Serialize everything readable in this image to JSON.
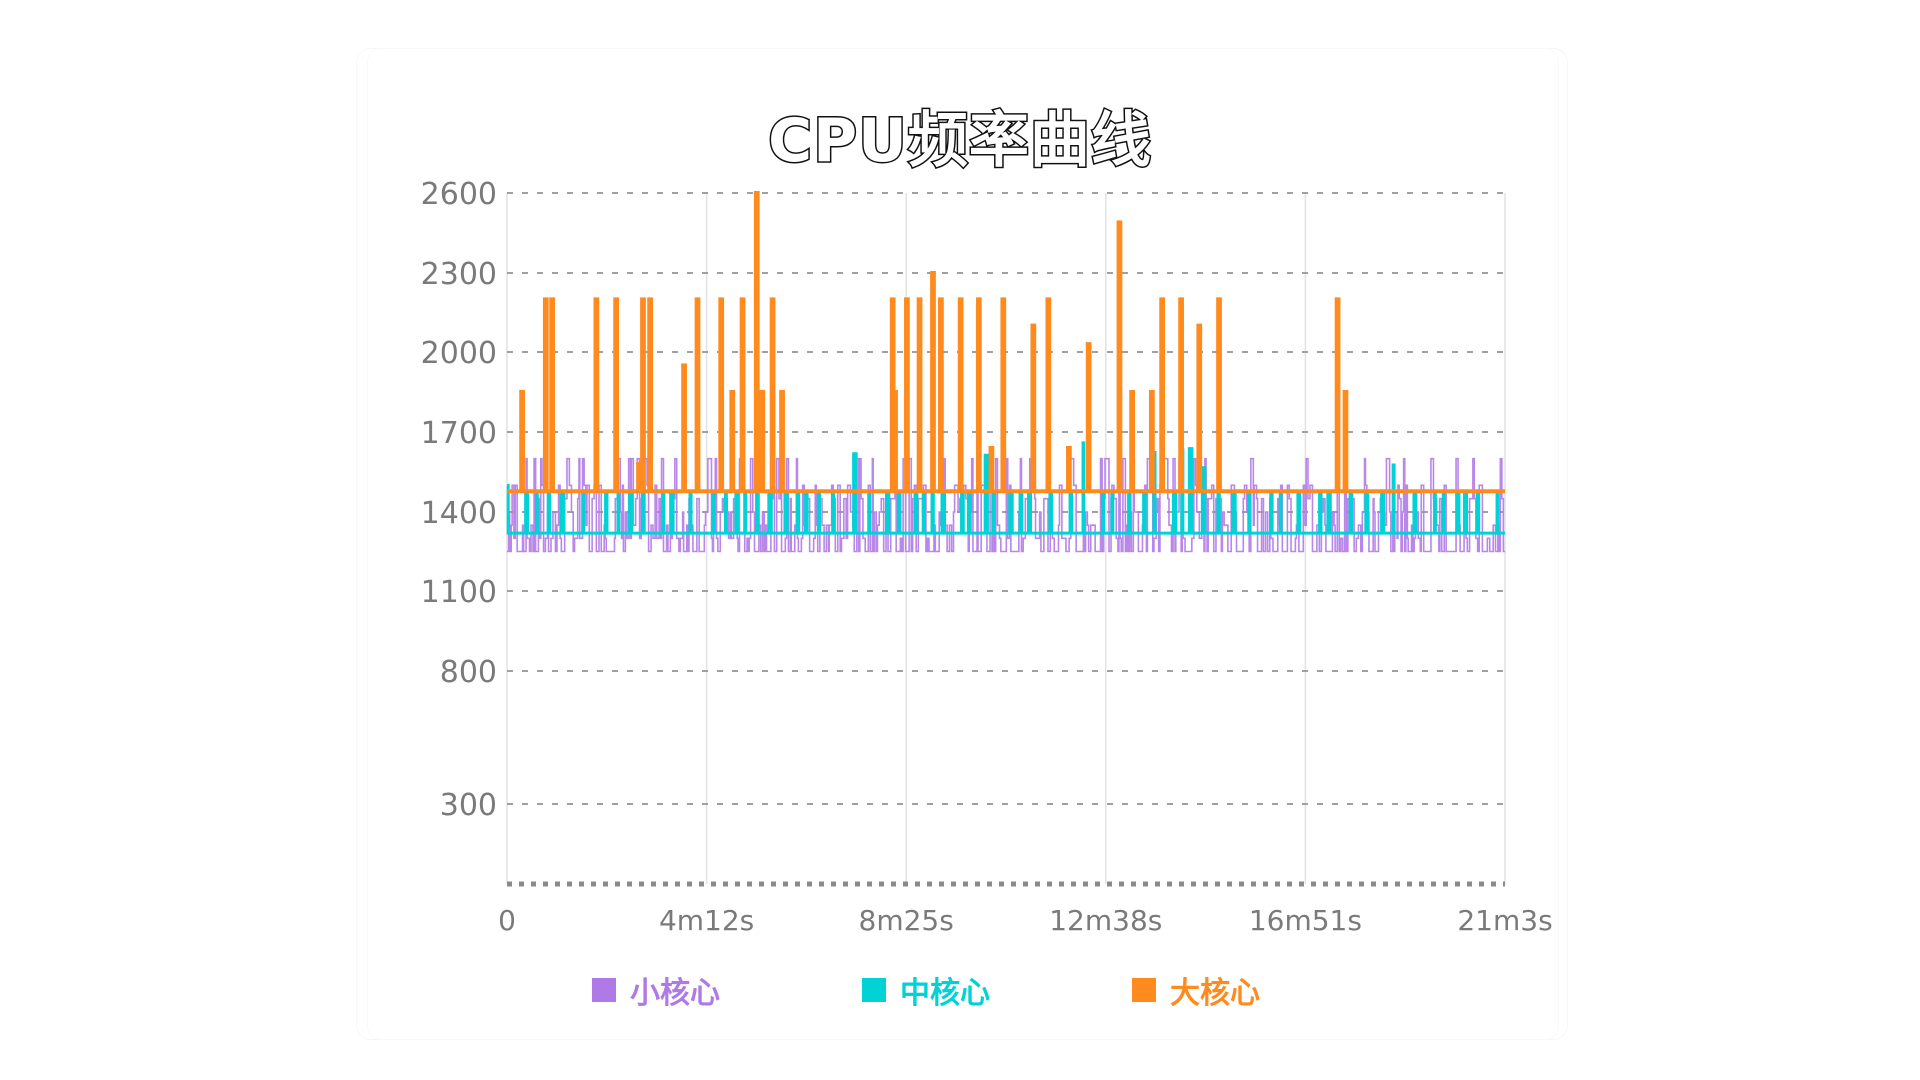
{
  "title": "CPU频率曲线",
  "colors": {
    "little": "#b07ae6",
    "mid": "#00d2d6",
    "big": "#ff8a1e",
    "grid": "#9a9a9a",
    "axis_text": "#7a7a7a"
  },
  "legend": [
    {
      "label": "小核心",
      "color": "#b07ae6"
    },
    {
      "label": "中核心",
      "color": "#00d2d6"
    },
    {
      "label": "大核心",
      "color": "#ff8a1e"
    }
  ],
  "chart_data": {
    "type": "line",
    "title": "CPU频率曲线",
    "xlabel": "",
    "ylabel": "",
    "y_ticks": [
      2600,
      2300,
      2000,
      1700,
      1400,
      1100,
      800,
      300
    ],
    "x_ticks": [
      "0",
      "4m12s",
      "8m25s",
      "12m38s",
      "16m51s",
      "21m3s"
    ],
    "xlim_seconds": [
      0,
      1263
    ],
    "ylim": [
      0,
      2600
    ],
    "grid": {
      "horizontal": "dashed",
      "vertical": "solid-light"
    },
    "legend_position": "bottom",
    "series": [
      {
        "name": "小核心",
        "color": "#b07ae6",
        "baseline": 1250,
        "range": [
          1250,
          1600
        ],
        "description": "rapid oscillation between ~1250 and ~1600 MHz throughout"
      },
      {
        "name": "中核心",
        "color": "#00d2d6",
        "baseline": 1320,
        "spike_values": [
          1500,
          1600,
          1650
        ],
        "description": "mostly ~1320 MHz with frequent spikes to ~1480-1650 MHz"
      },
      {
        "name": "大核心",
        "color": "#ff8a1e",
        "baseline": 1478,
        "peak_points": [
          {
            "t": 18,
            "v": 1850
          },
          {
            "t": 48,
            "v": 2200
          },
          {
            "t": 56,
            "v": 2200
          },
          {
            "t": 112,
            "v": 2200
          },
          {
            "t": 137,
            "v": 2200
          },
          {
            "t": 166,
            "v": 1580
          },
          {
            "t": 171,
            "v": 2200
          },
          {
            "t": 180,
            "v": 2200
          },
          {
            "t": 223,
            "v": 1950
          },
          {
            "t": 240,
            "v": 2200
          },
          {
            "t": 270,
            "v": 2200
          },
          {
            "t": 284,
            "v": 1850
          },
          {
            "t": 297,
            "v": 2200
          },
          {
            "t": 315,
            "v": 2600
          },
          {
            "t": 322,
            "v": 1850
          },
          {
            "t": 335,
            "v": 2200
          },
          {
            "t": 347,
            "v": 1850
          },
          {
            "t": 487,
            "v": 2200
          },
          {
            "t": 490,
            "v": 1850
          },
          {
            "t": 505,
            "v": 2200
          },
          {
            "t": 521,
            "v": 2200
          },
          {
            "t": 538,
            "v": 2300
          },
          {
            "t": 548,
            "v": 2200
          },
          {
            "t": 573,
            "v": 2200
          },
          {
            "t": 596,
            "v": 2200
          },
          {
            "t": 612,
            "v": 1640
          },
          {
            "t": 627,
            "v": 2200
          },
          {
            "t": 665,
            "v": 2100
          },
          {
            "t": 684,
            "v": 2200
          },
          {
            "t": 710,
            "v": 1640
          },
          {
            "t": 735,
            "v": 2030
          },
          {
            "t": 774,
            "v": 2490
          },
          {
            "t": 790,
            "v": 1850
          },
          {
            "t": 815,
            "v": 1850
          },
          {
            "t": 828,
            "v": 2200
          },
          {
            "t": 852,
            "v": 2200
          },
          {
            "t": 875,
            "v": 2100
          },
          {
            "t": 900,
            "v": 2200
          },
          {
            "t": 1050,
            "v": 2200
          },
          {
            "t": 1060,
            "v": 1850
          }
        ]
      }
    ]
  }
}
